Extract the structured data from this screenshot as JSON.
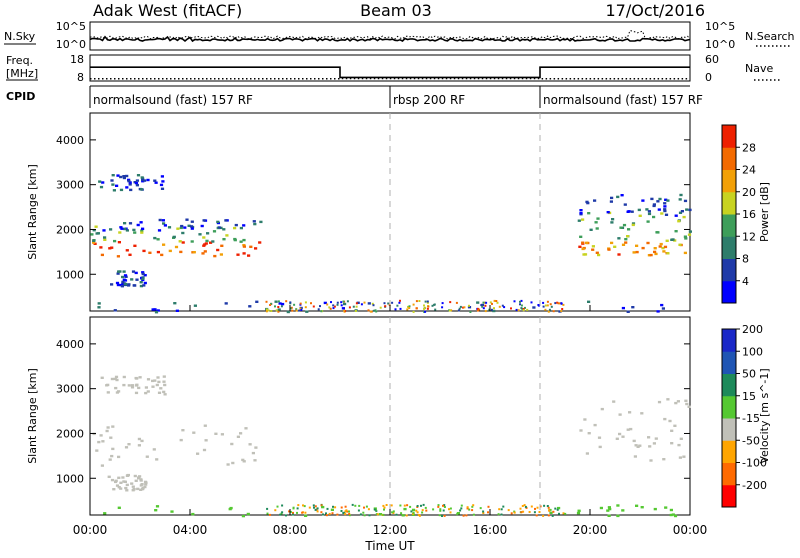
{
  "header": {
    "station": "Adak West (fitACF)",
    "beam": "Beam 03",
    "date": "17/Oct/2016"
  },
  "noise_panel": {
    "left_label": "N.Sky",
    "right_label": "N.Search",
    "left_ticks": [
      "10^5",
      "10^0"
    ],
    "right_ticks": [
      "10^5",
      "10^0"
    ]
  },
  "freq_panel": {
    "left_label_1": "Freq.",
    "left_label_2": "[MHz]",
    "left_ticks": [
      "18",
      "8"
    ],
    "right_label": "Nave",
    "right_ticks": [
      "60",
      "0"
    ],
    "freq_series": [
      {
        "x": 0.0,
        "y": 13.8
      },
      {
        "x": 10.0,
        "y": 13.8
      },
      {
        "x": 10.0,
        "y": 9.2
      },
      {
        "x": 18.0,
        "y": 9.2
      },
      {
        "x": 18.0,
        "y": 13.8
      },
      {
        "x": 24.0,
        "y": 13.8
      }
    ],
    "nave_series": [
      {
        "x": 0.0,
        "y": 3.6
      },
      {
        "x": 10.0,
        "y": 3.6
      },
      {
        "x": 10.0,
        "y": 4.1
      },
      {
        "x": 18.0,
        "y": 4.1
      },
      {
        "x": 18.0,
        "y": 3.6
      },
      {
        "x": 24.0,
        "y": 3.6
      }
    ]
  },
  "cpid_panel": {
    "label": "CPID",
    "segments": [
      {
        "start": 0,
        "end": 12,
        "label": "normalsound (fast) 157 RF"
      },
      {
        "start": 12,
        "end": 18,
        "label": "rbsp 200 RF"
      },
      {
        "start": 18,
        "end": 24,
        "label": "normalsound (fast) 157 RF"
      }
    ]
  },
  "colors": {
    "power": [
      "#0000ff",
      "#1f3aa8",
      "#2e7d6b",
      "#3e9e5a",
      "#c8d321",
      "#f2a007",
      "#f36a00",
      "#ee2000"
    ],
    "velocity": [
      "#ff0000",
      "#ff6a00",
      "#ffa500",
      "#c0c0b8",
      "#55c832",
      "#1d8a5a",
      "#1f55b4",
      "#1a28c8"
    ]
  },
  "chart_data": [
    {
      "type": "heatmap",
      "title": "Power",
      "ylabel": "Slant Range [km]",
      "xlim": [
        0,
        24
      ],
      "ylim": [
        180,
        4600
      ],
      "yticks": [
        "1000",
        "2000",
        "3000",
        "4000"
      ],
      "colorbar_label": "Power [dB]",
      "colorbar_ticks": [
        "4",
        "8",
        "12",
        "16",
        "20",
        "24",
        "28"
      ],
      "colorbar_range": [
        0,
        32
      ],
      "regions": [
        {
          "t0": 0.0,
          "t1": 6.8,
          "r0": 1350,
          "r1": 1750,
          "value": 27
        },
        {
          "t0": 0.0,
          "t1": 6.8,
          "r0": 1750,
          "r1": 2100,
          "value": 14
        },
        {
          "t0": 0.0,
          "t1": 6.8,
          "r0": 2000,
          "r1": 2250,
          "value": 6
        },
        {
          "t0": 0.3,
          "t1": 3.0,
          "r0": 2900,
          "r1": 3250,
          "value": 5
        },
        {
          "t0": 0.7,
          "t1": 2.2,
          "r0": 750,
          "r1": 1100,
          "value": 6
        },
        {
          "t0": 19.5,
          "t1": 24.0,
          "r0": 1450,
          "r1": 1750,
          "value": 24
        },
        {
          "t0": 19.5,
          "t1": 24.0,
          "r0": 1750,
          "r1": 2400,
          "value": 14
        },
        {
          "t0": 19.5,
          "t1": 24.0,
          "r0": 2300,
          "r1": 2800,
          "value": 6
        },
        {
          "t0": 0.0,
          "t1": 24.0,
          "r0": 180,
          "r1": 420,
          "value": 6
        }
      ]
    },
    {
      "type": "heatmap",
      "title": "Velocity",
      "ylabel": "Slant Range [km]",
      "xlabel": "Time UT",
      "xlim": [
        0,
        24
      ],
      "ylim": [
        180,
        4600
      ],
      "xticks": [
        "00:00",
        "04:00",
        "08:00",
        "12:00",
        "16:00",
        "20:00",
        "00:00"
      ],
      "yticks": [
        "1000",
        "2000",
        "3000",
        "4000"
      ],
      "colorbar_label": "Velocity [m s^-1]",
      "colorbar_ticks": [
        "-200",
        "-100",
        "-50",
        "-15",
        "15",
        "50",
        "100",
        "200"
      ],
      "regions": [
        {
          "t0": 0.0,
          "t1": 6.8,
          "r0": 1300,
          "r1": 2200,
          "value": 0
        },
        {
          "t0": 0.3,
          "t1": 3.0,
          "r0": 2900,
          "r1": 3300,
          "value": 0
        },
        {
          "t0": 0.7,
          "t1": 2.2,
          "r0": 750,
          "r1": 1100,
          "value": 0
        },
        {
          "t0": 19.5,
          "t1": 24.0,
          "r0": 1400,
          "r1": 2800,
          "value": 0
        },
        {
          "t0": 0.0,
          "t1": 24.0,
          "r0": 180,
          "r1": 420,
          "value": 30
        }
      ]
    }
  ]
}
